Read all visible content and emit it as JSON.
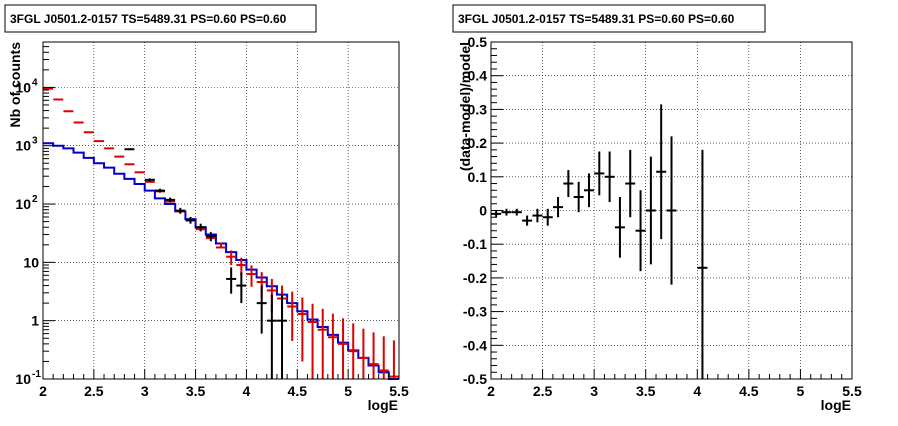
{
  "chart_data": [
    {
      "type": "line",
      "title": "3FGL J0501.2-0157 TS=5489.31 PS=0.60 PS=0.60",
      "xlabel": "logE",
      "ylabel": "Nb of counts",
      "xlim": [
        2,
        5.5
      ],
      "ylim": [
        0.1,
        60000
      ],
      "y_scale": "log",
      "grid": true,
      "x_ticks": [
        "2",
        "2.5",
        "3",
        "3.5",
        "4",
        "4.5",
        "5",
        "5.5"
      ],
      "y_ticks": [
        {
          "value": 0.1,
          "label": "10",
          "exp": "-1"
        },
        {
          "value": 1,
          "label": "1",
          "exp": ""
        },
        {
          "value": 10,
          "label": "10",
          "exp": ""
        },
        {
          "value": 100,
          "label": "10",
          "exp": "2"
        },
        {
          "value": 1000,
          "label": "10",
          "exp": "3"
        },
        {
          "value": 10000,
          "label": "10",
          "exp": "4"
        }
      ],
      "colors": {
        "model_total": "#dd0000",
        "model_source": "#0000cc",
        "data": "#000000"
      },
      "bin_edges": [
        2.0,
        2.1,
        2.2,
        2.3,
        2.4,
        2.5,
        2.6,
        2.7,
        2.8,
        2.9,
        3.0,
        3.1,
        3.2,
        3.3,
        3.4,
        3.5,
        3.6,
        3.7,
        3.8,
        3.9,
        4.0,
        4.1,
        4.2,
        4.3,
        4.4,
        4.5,
        4.6,
        4.7,
        4.8,
        4.9,
        5.0,
        5.1,
        5.2,
        5.3,
        5.4,
        5.5
      ],
      "series": [
        {
          "style": "step",
          "color": "#0000cc",
          "values": [
            1100,
            1000,
            900,
            760,
            620,
            500,
            420,
            330,
            270,
            220,
            170,
            125,
            100,
            75,
            55,
            40,
            30,
            21,
            15,
            11,
            7.5,
            5.5,
            3.9,
            2.8,
            2.0,
            1.45,
            1.05,
            0.78,
            0.57,
            0.42,
            0.31,
            0.23,
            0.17,
            0.13,
            0.1
          ]
        },
        {
          "style": "points-with-errors",
          "color": "#dd0000",
          "x": [
            2.05,
            2.15,
            2.25,
            2.35,
            2.45,
            2.55,
            2.65,
            2.75,
            2.85,
            2.95,
            3.05,
            3.15,
            3.25,
            3.35,
            3.45,
            3.55,
            3.65,
            3.75,
            3.85,
            3.95,
            4.05,
            4.15,
            4.25,
            4.35,
            4.45,
            4.55,
            4.65,
            4.75,
            4.85,
            4.95,
            5.05,
            5.15,
            5.25,
            5.35,
            5.45
          ],
          "y": [
            9500,
            6200,
            3900,
            2500,
            1700,
            1200,
            900,
            650,
            480,
            350,
            240,
            165,
            110,
            75,
            52,
            37,
            26,
            18,
            12.5,
            9,
            6.3,
            4.6,
            3.3,
            2.4,
            1.75,
            1.3,
            0.95,
            0.7,
            0.52,
            0.4,
            0.3,
            0.23,
            0.18,
            0.14,
            0.11
          ],
          "err_low": [
            0,
            0,
            0,
            0,
            0,
            0,
            0,
            0,
            0,
            0,
            0,
            0,
            0,
            0,
            0,
            0,
            0,
            0,
            3.5,
            3.0,
            2.5,
            2.2,
            1.9,
            1.6,
            1.3,
            1.1,
            0.9,
            0.7,
            0.52,
            0.4,
            0.3,
            0.23,
            0.18,
            0.14,
            0.11
          ],
          "err_high": [
            0,
            0,
            0,
            0,
            0,
            0,
            0,
            0,
            0,
            0,
            0,
            0,
            0,
            0,
            0,
            0,
            5,
            4,
            3.5,
            3.0,
            2.6,
            2.2,
            1.9,
            1.6,
            1.4,
            1.2,
            1.0,
            0.9,
            0.8,
            0.7,
            0.6,
            0.5,
            0.45,
            0.4,
            0.35
          ]
        },
        {
          "style": "points-with-errors",
          "color": "#000000",
          "x": [
            2.85,
            3.05,
            3.15,
            3.25,
            3.35,
            3.45,
            3.55,
            3.65,
            3.85,
            3.95,
            4.15,
            4.25,
            4.35
          ],
          "y": [
            870,
            260,
            170,
            118,
            77,
            53,
            40,
            28,
            5.2,
            4.0,
            2.0,
            1.0,
            1.0
          ],
          "err_low": [
            30,
            16,
            13,
            11,
            9,
            7,
            6,
            5,
            2.3,
            2.0,
            1.4,
            0.9,
            0.9
          ],
          "err_high": [
            30,
            16,
            13,
            11,
            9,
            7,
            6,
            5,
            3.0,
            2.7,
            2.0,
            1.8,
            1.8
          ]
        }
      ]
    },
    {
      "type": "scatter",
      "title": "3FGL J0501.2-0157 TS=5489.31 PS=0.60 PS=0.60",
      "xlabel": "logE",
      "ylabel": "(data-model)/model",
      "xlim": [
        2,
        5.5
      ],
      "ylim": [
        -0.5,
        0.5
      ],
      "grid": true,
      "x_ticks": [
        "2",
        "2.5",
        "3",
        "3.5",
        "4",
        "4.5",
        "5",
        "5.5"
      ],
      "y_ticks": [
        "-0.5",
        "-0.4",
        "-0.3",
        "-0.2",
        "-0.1",
        "0",
        "0.1",
        "0.2",
        "0.3",
        "0.4",
        "0.5"
      ],
      "y_tick_values": [
        -0.5,
        -0.4,
        -0.3,
        -0.2,
        -0.1,
        0,
        0.1,
        0.2,
        0.3,
        0.4,
        0.5
      ],
      "series": [
        {
          "style": "points-with-errors",
          "color": "#000000",
          "x": [
            2.05,
            2.15,
            2.25,
            2.35,
            2.45,
            2.55,
            2.65,
            2.75,
            2.85,
            2.95,
            3.05,
            3.15,
            3.25,
            3.35,
            3.45,
            3.55,
            3.65,
            3.75,
            4.05
          ],
          "y": [
            -0.01,
            -0.005,
            -0.005,
            -0.03,
            -0.015,
            -0.02,
            0.01,
            0.08,
            0.04,
            0.06,
            0.11,
            0.1,
            -0.05,
            0.08,
            -0.06,
            0.0,
            0.115,
            0.0,
            -0.17
          ],
          "err": [
            0.01,
            0.01,
            0.01,
            0.015,
            0.02,
            0.025,
            0.03,
            0.04,
            0.045,
            0.05,
            0.065,
            0.075,
            0.09,
            0.1,
            0.12,
            0.16,
            0.2,
            0.22,
            0.35
          ]
        }
      ]
    }
  ]
}
